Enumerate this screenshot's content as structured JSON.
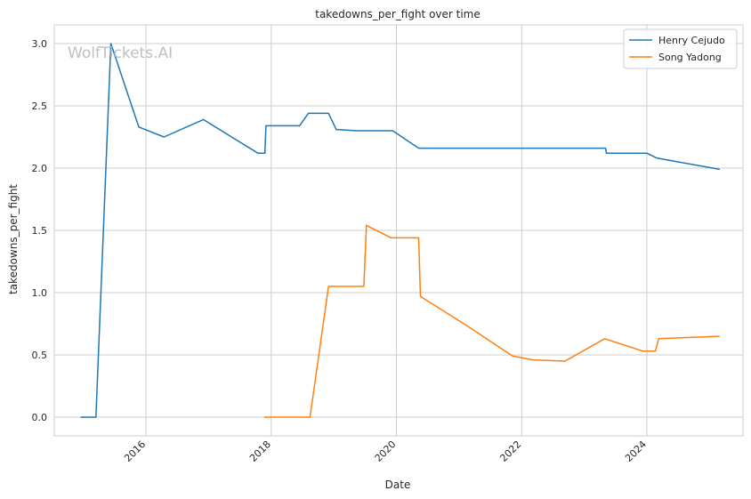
{
  "chart_data": {
    "type": "line",
    "title": "takedowns_per_fight over time",
    "xlabel": "Date",
    "ylabel": "takedowns_per_fight",
    "watermark": "WolfTickets.AI",
    "xlim": [
      "2014-07-15",
      "2025-07-15"
    ],
    "ylim": [
      -0.15,
      3.15
    ],
    "x_ticks": [
      {
        "date": "2016-01-01",
        "label": "2016"
      },
      {
        "date": "2018-01-01",
        "label": "2018"
      },
      {
        "date": "2020-01-01",
        "label": "2020"
      },
      {
        "date": "2022-01-01",
        "label": "2022"
      },
      {
        "date": "2024-01-01",
        "label": "2024"
      }
    ],
    "y_ticks": [
      {
        "value": 0.0,
        "label": "0.0"
      },
      {
        "value": 0.5,
        "label": "0.5"
      },
      {
        "value": 1.0,
        "label": "1.0"
      },
      {
        "value": 1.5,
        "label": "1.5"
      },
      {
        "value": 2.0,
        "label": "2.0"
      },
      {
        "value": 2.5,
        "label": "2.5"
      },
      {
        "value": 3.0,
        "label": "3.0"
      }
    ],
    "grid": true,
    "legend_position": "top-right",
    "series": [
      {
        "name": "Henry Cejudo",
        "color": "#1f77b4",
        "points": [
          {
            "x": "2014-12-15",
            "y": 0.0
          },
          {
            "x": "2015-03-15",
            "y": 0.0
          },
          {
            "x": "2015-06-10",
            "y": 3.0
          },
          {
            "x": "2015-11-20",
            "y": 2.33
          },
          {
            "x": "2016-04-15",
            "y": 2.25
          },
          {
            "x": "2016-12-01",
            "y": 2.39
          },
          {
            "x": "2017-10-15",
            "y": 2.12
          },
          {
            "x": "2017-11-25",
            "y": 2.12
          },
          {
            "x": "2017-12-01",
            "y": 2.34
          },
          {
            "x": "2018-06-15",
            "y": 2.34
          },
          {
            "x": "2018-08-05",
            "y": 2.44
          },
          {
            "x": "2018-12-01",
            "y": 2.44
          },
          {
            "x": "2019-01-15",
            "y": 2.31
          },
          {
            "x": "2019-05-15",
            "y": 2.3
          },
          {
            "x": "2019-12-10",
            "y": 2.3
          },
          {
            "x": "2020-05-10",
            "y": 2.16
          },
          {
            "x": "2023-05-05",
            "y": 2.16
          },
          {
            "x": "2023-05-10",
            "y": 2.12
          },
          {
            "x": "2024-01-01",
            "y": 2.12
          },
          {
            "x": "2024-03-01",
            "y": 2.08
          },
          {
            "x": "2025-03-01",
            "y": 1.99
          }
        ]
      },
      {
        "name": "Song Yadong",
        "color": "#ff7f0e",
        "points": [
          {
            "x": "2017-11-20",
            "y": 0.0
          },
          {
            "x": "2018-08-15",
            "y": 0.0
          },
          {
            "x": "2018-12-01",
            "y": 1.05
          },
          {
            "x": "2019-06-25",
            "y": 1.05
          },
          {
            "x": "2019-07-10",
            "y": 1.54
          },
          {
            "x": "2019-12-01",
            "y": 1.44
          },
          {
            "x": "2020-05-10",
            "y": 1.44
          },
          {
            "x": "2020-05-20",
            "y": 0.97
          },
          {
            "x": "2021-02-20",
            "y": 0.73
          },
          {
            "x": "2021-11-10",
            "y": 0.49
          },
          {
            "x": "2022-03-10",
            "y": 0.46
          },
          {
            "x": "2022-09-10",
            "y": 0.45
          },
          {
            "x": "2023-04-30",
            "y": 0.63
          },
          {
            "x": "2023-12-10",
            "y": 0.53
          },
          {
            "x": "2024-02-20",
            "y": 0.53
          },
          {
            "x": "2024-03-10",
            "y": 0.63
          },
          {
            "x": "2025-03-01",
            "y": 0.65
          }
        ]
      }
    ]
  }
}
